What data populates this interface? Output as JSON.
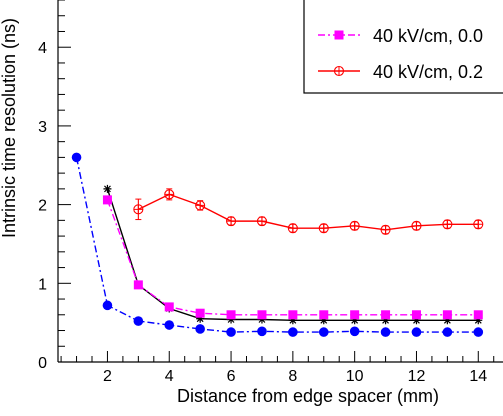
{
  "chart_data": {
    "type": "line",
    "xlabel": "Distance from edge spacer (mm)",
    "ylabel": "Intrinsic time resolution (ns)",
    "xlim": [
      0.4,
      14.8
    ],
    "ylim": [
      0,
      4.6
    ],
    "x_ticks": [
      {
        "value": 2,
        "label": "2"
      },
      {
        "value": 4,
        "label": "4"
      },
      {
        "value": 6,
        "label": "6"
      },
      {
        "value": 8,
        "label": "8"
      },
      {
        "value": 10,
        "label": "10"
      },
      {
        "value": 12,
        "label": "12"
      },
      {
        "value": 14,
        "label": "14"
      }
    ],
    "y_ticks": [
      {
        "value": 0,
        "label": "0"
      },
      {
        "value": 1,
        "label": "1"
      },
      {
        "value": 2,
        "label": "2"
      },
      {
        "value": 3,
        "label": "3"
      },
      {
        "value": 4,
        "label": "4"
      }
    ],
    "grid": false,
    "legend_position": "top-right",
    "series": [
      {
        "color": "#0000ff",
        "line": "dash-dot",
        "marker": "filled-circle",
        "x": [
          1,
          2,
          3,
          4,
          5,
          6,
          7,
          8,
          9,
          10,
          11,
          12,
          13,
          14
        ],
        "y": [
          2.6,
          0.72,
          0.52,
          0.47,
          0.42,
          0.38,
          0.39,
          0.38,
          0.38,
          0.39,
          0.38,
          0.38,
          0.38,
          0.38
        ]
      },
      {
        "color": "#000000",
        "line": "solid",
        "marker": "star",
        "x": [
          2,
          3,
          4,
          5,
          6,
          7,
          8,
          9,
          10,
          11,
          12,
          13,
          14
        ],
        "y": [
          2.2,
          0.98,
          0.68,
          0.55,
          0.54,
          0.54,
          0.53,
          0.53,
          0.53,
          0.53,
          0.53,
          0.53,
          0.53
        ]
      },
      {
        "name": "40 kV/cm, 0.0",
        "color": "#ff00ff",
        "line": "dash-dot",
        "marker": "filled-square",
        "x": [
          2,
          3,
          4,
          5,
          6,
          7,
          8,
          9,
          10,
          11,
          12,
          13,
          14
        ],
        "y": [
          2.06,
          0.98,
          0.7,
          0.62,
          0.6,
          0.6,
          0.6,
          0.6,
          0.6,
          0.6,
          0.6,
          0.6,
          0.6
        ]
      },
      {
        "name": "40 kV/cm, 0.2",
        "color": "#ff0000",
        "line": "solid",
        "marker": "open-star",
        "x": [
          3,
          4,
          5,
          6,
          7,
          8,
          9,
          10,
          11,
          12,
          13,
          14
        ],
        "y": [
          1.94,
          2.13,
          1.99,
          1.79,
          1.79,
          1.7,
          1.7,
          1.73,
          1.68,
          1.73,
          1.75,
          1.75
        ],
        "err": [
          0.13,
          0.07,
          0.06,
          0.05,
          0.05,
          0.05,
          0.05,
          0.05,
          0.05,
          0.05,
          0.05,
          0.05
        ]
      }
    ]
  }
}
